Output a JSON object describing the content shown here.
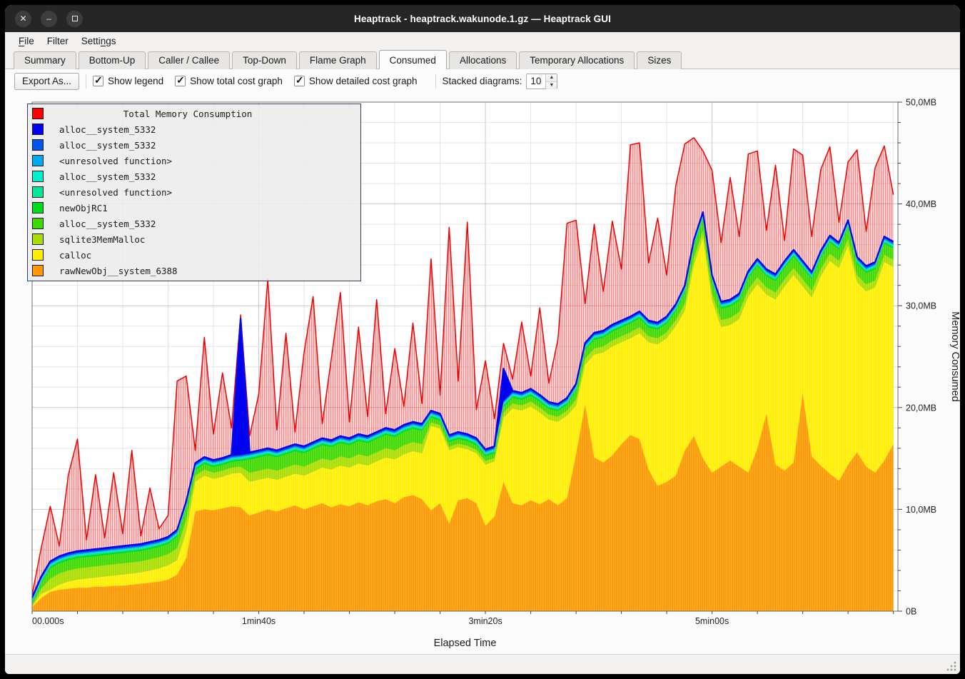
{
  "window": {
    "title": "Heaptrack - heaptrack.wakunode.1.gz — Heaptrack GUI",
    "controls": {
      "close": "✕",
      "minimize": "–",
      "maximize": "□"
    }
  },
  "menu_bar": {
    "items": [
      {
        "label": "File",
        "underline_index": 0
      },
      {
        "label": "Filter",
        "underline_index": null
      },
      {
        "label": "Settings",
        "underline_index": 5
      }
    ]
  },
  "tabs": {
    "items": [
      "Summary",
      "Bottom-Up",
      "Caller / Callee",
      "Top-Down",
      "Flame Graph",
      "Consumed",
      "Allocations",
      "Temporary Allocations",
      "Sizes"
    ],
    "active": "Consumed"
  },
  "toolbar": {
    "export_label": "Export As...",
    "checkboxes": [
      {
        "label": "Show legend",
        "checked": true
      },
      {
        "label": "Show total cost graph",
        "checked": true
      },
      {
        "label": "Show detailed cost graph",
        "checked": true
      }
    ],
    "stacked_diagrams_label": "Stacked diagrams:",
    "stacked_diagrams_value": "10"
  },
  "colors": {
    "titlebar_bg": "#262626",
    "chrome_bg": "#f2f1f0",
    "content_bg": "#fcfcfc",
    "grid_minor": "#e4e4e4",
    "grid_major": "#c8c8c8",
    "axis_frame": "#6b6b6b",
    "tick_text": "#222222",
    "total_red": "#f20000",
    "top_line_blue": "#0008f0"
  },
  "chart_data": {
    "type": "area",
    "title": "Total Memory Consumption",
    "xlabel": "Elapsed Time",
    "ylabel": "Memory Consumed",
    "xlim_s": [
      0,
      382
    ],
    "ylim_mb": [
      0,
      50
    ],
    "grid": {
      "x_minor_step_s": 20,
      "y_minor_step_mb": 2,
      "x_major_step_s": 100,
      "y_major_step_mb": 10,
      "grid_on": true
    },
    "x_ticks": [
      {
        "t": 0,
        "label": "00.000s"
      },
      {
        "t": 100,
        "label": "1min40s"
      },
      {
        "t": 200,
        "label": "3min20s"
      },
      {
        "t": 300,
        "label": "5min00s"
      }
    ],
    "y_ticks": [
      {
        "v": 0,
        "label": "0B"
      },
      {
        "v": 10,
        "label": "10,0MB"
      },
      {
        "v": 20,
        "label": "20,0MB"
      },
      {
        "v": 30,
        "label": "30,0MB"
      },
      {
        "v": 40,
        "label": "40,0MB"
      },
      {
        "v": 50,
        "label": "50,0MB"
      }
    ],
    "legend": {
      "position": "top-left",
      "title": "Total Memory Consumption",
      "title_color": "#ff0000",
      "entries": [
        {
          "label": "alloc__system_5332",
          "color": "#0000f0"
        },
        {
          "label": "alloc__system_5332",
          "color": "#0055ee"
        },
        {
          "label": "<unresolved function>",
          "color": "#00aaee"
        },
        {
          "label": "alloc__system_5332",
          "color": "#00f0d0"
        },
        {
          "label": "<unresolved function>",
          "color": "#00e897"
        },
        {
          "label": "newObjRC1",
          "color": "#00dc1c"
        },
        {
          "label": "alloc__system_5332",
          "color": "#3fd900"
        },
        {
          "label": "sqlite3MemMalloc",
          "color": "#aadd00"
        },
        {
          "label": "calloc",
          "color": "#ffee00"
        },
        {
          "label": "rawNewObj__system_6388",
          "color": "#ff9900"
        }
      ]
    },
    "t": [
      0,
      4,
      8,
      12,
      16,
      20,
      24,
      28,
      32,
      36,
      40,
      44,
      48,
      52,
      56,
      60,
      64,
      68,
      72,
      76,
      80,
      84,
      88,
      92,
      96,
      100,
      104,
      108,
      112,
      116,
      120,
      124,
      128,
      132,
      136,
      140,
      144,
      148,
      152,
      156,
      160,
      164,
      168,
      172,
      176,
      180,
      184,
      188,
      192,
      196,
      200,
      204,
      208,
      212,
      216,
      220,
      224,
      228,
      232,
      236,
      240,
      244,
      248,
      252,
      256,
      260,
      264,
      268,
      272,
      276,
      280,
      284,
      288,
      292,
      296,
      300,
      304,
      308,
      312,
      316,
      320,
      324,
      328,
      332,
      336,
      340,
      344,
      348,
      352,
      356,
      360,
      364,
      368,
      372,
      376,
      380
    ],
    "total": {
      "name": "Total Memory Consumption",
      "color": "#f20000",
      "values_mb": [
        1.6,
        6.2,
        10.3,
        6.4,
        13.4,
        16.9,
        7.0,
        13.4,
        7.2,
        13.6,
        7.6,
        15.8,
        7.4,
        12.1,
        8.1,
        9.4,
        22.6,
        23.1,
        15.8,
        26.9,
        17.4,
        23.4,
        18.0,
        29.1,
        17.2,
        21.3,
        32.6,
        17.8,
        27.3,
        17.6,
        25.4,
        30.9,
        18.4,
        24.8,
        31.3,
        18.6,
        27.9,
        19.1,
        30.6,
        19.4,
        25.8,
        20.1,
        28.3,
        20.4,
        34.6,
        21.2,
        37.7,
        22.6,
        38.2,
        19.8,
        24.6,
        18.9,
        26.3,
        22.8,
        28.4,
        23.1,
        29.8,
        22.4,
        26.7,
        38.1,
        38.4,
        30.2,
        38.0,
        31.4,
        38.3,
        33.6,
        45.8,
        46.0,
        34.2,
        38.6,
        33.0,
        41.8,
        45.9,
        46.5,
        45.2,
        43.3,
        36.2,
        42.6,
        36.8,
        44.9,
        45.2,
        37.4,
        43.8,
        36.4,
        45.4,
        44.8,
        36.8,
        43.4,
        45.6,
        38.2,
        44.1,
        45.3,
        37.3,
        43.6,
        45.7,
        40.9
      ]
    },
    "series_note": "stacked areas listed bottom-of-stack first; values in MB",
    "series": [
      {
        "name": "rawNewObj__system_6388",
        "color": "#ff9900",
        "values_mb": [
          0.4,
          1.3,
          1.9,
          2.1,
          2.2,
          2.3,
          2.3,
          2.4,
          2.4,
          2.5,
          2.5,
          2.6,
          2.7,
          2.8,
          2.9,
          3.1,
          3.6,
          5.2,
          9.8,
          10.0,
          9.9,
          10.1,
          10.3,
          10.2,
          9.4,
          9.7,
          10.0,
          9.8,
          10.1,
          10.4,
          10.0,
          10.3,
          10.6,
          10.2,
          10.5,
          10.3,
          10.7,
          10.4,
          10.8,
          11.0,
          10.6,
          11.2,
          11.4,
          11.0,
          9.9,
          10.6,
          8.6,
          10.9,
          11.1,
          10.6,
          8.4,
          9.3,
          12.7,
          10.6,
          10.4,
          10.9,
          10.5,
          11.0,
          10.4,
          11.1,
          15.4,
          20.3,
          15.1,
          14.6,
          15.3,
          16.4,
          17.3,
          16.9,
          13.9,
          12.3,
          12.7,
          13.3,
          15.8,
          17.2,
          15.0,
          13.6,
          14.2,
          14.8,
          14.2,
          13.6,
          16.0,
          19.4,
          14.4,
          13.8,
          14.6,
          21.4,
          15.2,
          14.3,
          13.5,
          12.8,
          14.4,
          15.6,
          14.2,
          13.6,
          14.8,
          16.4
        ]
      },
      {
        "name": "calloc",
        "color": "#ffee00",
        "values_mb": [
          0.05,
          0.4,
          0.2,
          0.5,
          0.7,
          0.8,
          0.9,
          0.9,
          1.0,
          1.0,
          1.1,
          1.1,
          1.1,
          1.2,
          1.3,
          1.4,
          1.4,
          2.6,
          2.9,
          3.3,
          3.1,
          3.1,
          3.2,
          3.4,
          3.3,
          3.2,
          3.1,
          3.1,
          3.1,
          3.1,
          3.3,
          3.4,
          3.5,
          3.7,
          3.8,
          3.8,
          3.8,
          3.9,
          3.9,
          4.1,
          4.3,
          4.2,
          4.3,
          4.5,
          8.3,
          7.3,
          7.2,
          5.2,
          4.8,
          4.9,
          6.0,
          5.4,
          6.3,
          9.3,
          9.3,
          9.2,
          9.0,
          7.8,
          8.2,
          8.1,
          4.8,
          3.9,
          10.1,
          10.8,
          10.7,
          10.0,
          9.5,
          10.4,
          12.5,
          13.9,
          14.1,
          14.7,
          13.7,
          16.8,
          21.7,
          16.9,
          13.7,
          13.3,
          14.5,
          17.3,
          16.1,
          11.7,
          16.2,
          18.1,
          18.4,
          10.5,
          15.6,
          18.6,
          20.9,
          20.9,
          21.5,
          16.7,
          17.2,
          18.2,
          19.5,
          17.4
        ]
      },
      {
        "name": "sqlite3MemMalloc",
        "color": "#aadd00",
        "values_mb": [
          0.1,
          0.5,
          1.1,
          1.1,
          1.1,
          1.1,
          1.1,
          1.1,
          1.1,
          1.1,
          1.1,
          1.1,
          1.1,
          1.1,
          1.1,
          1.1,
          1.2,
          1.2,
          0.6,
          0.6,
          0.6,
          0.6,
          0.6,
          0.6,
          0.9,
          0.9,
          0.9,
          0.9,
          0.9,
          0.9,
          0.9,
          0.9,
          0.9,
          0.9,
          0.9,
          0.9,
          0.9,
          0.9,
          0.9,
          0.9,
          0.9,
          0.9,
          0.9,
          0.9,
          0.35,
          0.35,
          0.35,
          0.35,
          0.35,
          0.35,
          0.35,
          0.35,
          0.5,
          0.5,
          0.5,
          0.5,
          0.5,
          0.5,
          0.5,
          0.5,
          0.6,
          0.6,
          0.6,
          0.6,
          0.6,
          0.6,
          0.6,
          0.6,
          0.6,
          0.6,
          0.6,
          0.6,
          0.7,
          0.7,
          0.7,
          0.7,
          0.7,
          0.7,
          0.7,
          0.7,
          0.7,
          0.7,
          0.7,
          0.7,
          0.7,
          0.7,
          0.7,
          0.7,
          0.7,
          0.7,
          0.7,
          0.7,
          0.7,
          0.7,
          0.7,
          0.7
        ]
      },
      {
        "name": "alloc__system_5332",
        "color": "#3fd900",
        "values_mb": [
          0.1,
          0.5,
          1.0,
          1.0,
          1.0,
          1.0,
          1.0,
          1.0,
          1.0,
          1.0,
          1.0,
          1.0,
          1.0,
          1.0,
          1.0,
          1.0,
          1.1,
          1.1,
          0.55,
          0.55,
          0.55,
          0.55,
          0.55,
          0.55,
          1.3,
          1.3,
          1.3,
          1.3,
          1.3,
          1.3,
          1.3,
          1.3,
          1.3,
          1.3,
          1.3,
          1.3,
          1.3,
          1.3,
          1.3,
          1.3,
          1.3,
          1.3,
          1.3,
          1.3,
          0.45,
          0.45,
          0.45,
          0.45,
          0.45,
          0.45,
          0.45,
          0.45,
          0.55,
          0.55,
          0.55,
          0.55,
          0.55,
          0.55,
          0.55,
          0.55,
          0.85,
          0.85,
          0.85,
          0.85,
          0.85,
          0.85,
          0.85,
          0.85,
          0.85,
          0.85,
          0.85,
          0.85,
          1.1,
          1.1,
          1.1,
          1.1,
          1.1,
          1.1,
          1.1,
          1.1,
          1.1,
          1.1,
          1.1,
          1.1,
          1.1,
          1.1,
          1.1,
          1.1,
          1.1,
          1.1,
          1.1,
          1.1,
          1.1,
          1.1,
          1.1,
          1.1
        ]
      },
      {
        "name": "newObjRC1",
        "color": "#00dc1c",
        "constant_mb": 0.15
      },
      {
        "name": "<unresolved function>",
        "color": "#00e897",
        "constant_mb": 0.12
      },
      {
        "name": "alloc__system_5332",
        "color": "#00f0d0",
        "constant_mb": 0.1
      },
      {
        "name": "<unresolved function>",
        "color": "#00aaee",
        "constant_mb": 0.1
      },
      {
        "name": "alloc__system_5332",
        "color": "#0055ee",
        "constant_mb": 0.11
      },
      {
        "name": "alloc__system_5332",
        "color": "#0000f0",
        "constant_mb": 0.12,
        "spikes": [
          {
            "index": 23,
            "value_mb": 13.4
          },
          {
            "index": 52,
            "value_mb": 3.2
          }
        ]
      }
    ]
  }
}
